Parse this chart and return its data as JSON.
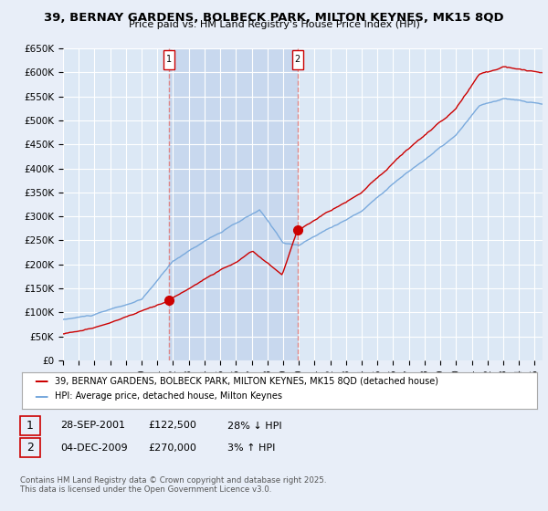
{
  "title": "39, BERNAY GARDENS, BOLBECK PARK, MILTON KEYNES, MK15 8QD",
  "subtitle": "Price paid vs. HM Land Registry's House Price Index (HPI)",
  "ylabel_ticks": [
    "£0",
    "£50K",
    "£100K",
    "£150K",
    "£200K",
    "£250K",
    "£300K",
    "£350K",
    "£400K",
    "£450K",
    "£500K",
    "£550K",
    "£600K",
    "£650K"
  ],
  "ytick_vals": [
    0,
    50000,
    100000,
    150000,
    200000,
    250000,
    300000,
    350000,
    400000,
    450000,
    500000,
    550000,
    600000,
    650000
  ],
  "background_color": "#e8eef8",
  "plot_bg_color": "#dce8f5",
  "fill_region_color": "#c8d8ee",
  "grid_color": "#ffffff",
  "red_line_color": "#cc0000",
  "blue_line_color": "#7aaadd",
  "transaction1_date_x": 2001.74,
  "transaction1_price": 122500,
  "transaction2_date_x": 2009.92,
  "transaction2_price": 270000,
  "vline_color": "#dd8888",
  "legend_label_red": "39, BERNAY GARDENS, BOLBECK PARK, MILTON KEYNES, MK15 8QD (detached house)",
  "legend_label_blue": "HPI: Average price, detached house, Milton Keynes",
  "footer": "Contains HM Land Registry data © Crown copyright and database right 2025.\nThis data is licensed under the Open Government Licence v3.0.",
  "xmin": 1995.0,
  "xmax": 2025.5,
  "ymin": 0,
  "ymax": 650000
}
